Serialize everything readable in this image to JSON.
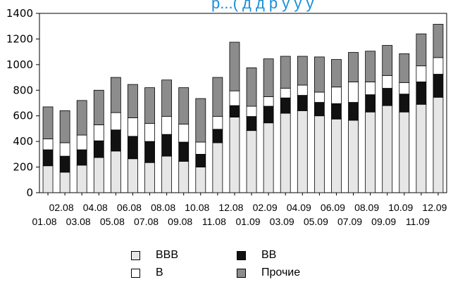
{
  "title_fragment": "р...( д  д р у у у",
  "chart_data": {
    "type": "bar",
    "stacked": true,
    "title": "",
    "xlabel": "",
    "ylabel": "",
    "ylim": [
      0,
      1400
    ],
    "yticks": [
      0,
      200,
      400,
      600,
      800,
      1000,
      1200,
      1400
    ],
    "grid": false,
    "legend_position": "bottom",
    "categories": [
      "01.08",
      "02.08",
      "03.08",
      "04.08",
      "05.08",
      "06.08",
      "07.08",
      "08.08",
      "09.08",
      "10.08",
      "11.08",
      "12.08",
      "01.09",
      "02.09",
      "03.09",
      "04.09",
      "05.09",
      "06.09",
      "07.09",
      "08.09",
      "09.09",
      "10.09",
      "11.09",
      "12.09"
    ],
    "series": [
      {
        "name": "BBB",
        "color": "#e6e6e6",
        "values": [
          210,
          160,
          215,
          275,
          325,
          265,
          235,
          285,
          245,
          200,
          390,
          590,
          485,
          545,
          620,
          640,
          600,
          575,
          565,
          630,
          680,
          630,
          690,
          745
        ]
      },
      {
        "name": "BB",
        "color": "#111111",
        "values": [
          125,
          125,
          120,
          130,
          165,
          175,
          165,
          170,
          150,
          100,
          105,
          90,
          110,
          130,
          120,
          120,
          105,
          120,
          140,
          135,
          135,
          140,
          175,
          180
        ]
      },
      {
        "name": "B",
        "color": "#ffffff",
        "values": [
          85,
          105,
          115,
          125,
          135,
          145,
          140,
          140,
          140,
          95,
          100,
          115,
          80,
          75,
          75,
          80,
          80,
          130,
          160,
          100,
          100,
          90,
          125,
          130
        ]
      },
      {
        "name": "Прочие",
        "color": "#8c8c8c",
        "values": [
          250,
          250,
          270,
          270,
          275,
          260,
          280,
          285,
          285,
          340,
          305,
          380,
          300,
          295,
          250,
          225,
          275,
          215,
          230,
          240,
          235,
          225,
          250,
          260
        ]
      }
    ]
  }
}
